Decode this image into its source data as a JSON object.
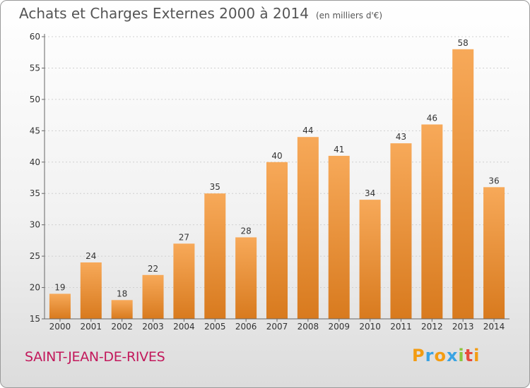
{
  "title": "Achats et Charges Externes 2000 à 2014",
  "unit_note": "(en milliers d'€)",
  "place_name": "SAINT-JEAN-DE-RIVES",
  "logo": {
    "letters": [
      "P",
      "r",
      "o",
      "x",
      "i",
      "t",
      "i"
    ],
    "colors": [
      "#f39c12",
      "#3aa3e3",
      "#f39c12",
      "#3aa3e3",
      "#8cc63f",
      "#e74c3c",
      "#f39c12"
    ]
  },
  "colors": {
    "bar_top": "#f7a959",
    "bar_bottom": "#d87a1e",
    "grid": "#cfcfcf",
    "axis": "#666666",
    "label": "#333333"
  },
  "chart_data": {
    "type": "bar",
    "title": "Achats et Charges Externes 2000 à 2014",
    "subtitle": "(en milliers d'€)",
    "categories": [
      "2000",
      "2001",
      "2002",
      "2003",
      "2004",
      "2005",
      "2006",
      "2007",
      "2008",
      "2009",
      "2010",
      "2011",
      "2012",
      "2013",
      "2014"
    ],
    "values": [
      19,
      24,
      18,
      22,
      27,
      35,
      28,
      40,
      44,
      41,
      34,
      43,
      46,
      58,
      36
    ],
    "ylim": [
      15,
      60
    ],
    "yticks": [
      15,
      20,
      25,
      30,
      35,
      40,
      45,
      50,
      55,
      60
    ],
    "grid": true,
    "xlabel": "",
    "ylabel": ""
  }
}
